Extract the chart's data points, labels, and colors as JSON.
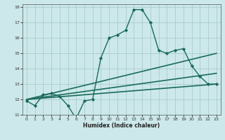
{
  "xlabel": "Humidex (Indice chaleur)",
  "background_color": "#cce8ea",
  "grid_color": "#aacccc",
  "line_color": "#1a6b5a",
  "xlim": [
    -0.5,
    23.5
  ],
  "ylim": [
    11,
    18.2
  ],
  "yticks": [
    11,
    12,
    13,
    14,
    15,
    16,
    17,
    18
  ],
  "xticks": [
    0,
    1,
    2,
    3,
    4,
    5,
    6,
    7,
    8,
    9,
    10,
    11,
    12,
    13,
    14,
    15,
    16,
    17,
    18,
    19,
    20,
    21,
    22,
    23
  ],
  "series": [
    {
      "x": [
        0,
        1,
        2,
        3,
        4,
        5,
        6,
        7,
        8,
        9,
        10,
        11,
        12,
        13,
        14,
        15,
        16,
        17,
        18,
        19,
        20,
        21,
        22,
        23
      ],
      "y": [
        11.9,
        11.6,
        12.3,
        12.4,
        12.2,
        11.6,
        10.75,
        11.9,
        12.0,
        14.7,
        16.0,
        16.2,
        16.5,
        17.85,
        17.85,
        17.0,
        15.2,
        15.0,
        15.2,
        15.3,
        14.2,
        13.5,
        13.0,
        13.0
      ],
      "marker": "D",
      "markersize": 2.2,
      "linewidth": 1.0
    },
    {
      "x": [
        0,
        23
      ],
      "y": [
        12.0,
        15.0
      ],
      "marker": null,
      "linewidth": 1.2
    },
    {
      "x": [
        0,
        23
      ],
      "y": [
        12.0,
        13.7
      ],
      "marker": null,
      "linewidth": 1.2
    },
    {
      "x": [
        0,
        23
      ],
      "y": [
        12.0,
        13.0
      ],
      "marker": null,
      "linewidth": 1.2
    }
  ]
}
